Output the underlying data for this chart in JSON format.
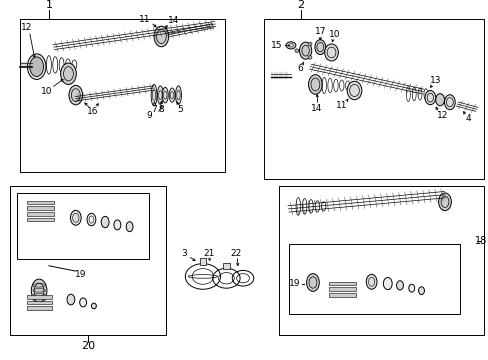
{
  "bg_color": "#ffffff",
  "line_color": "#000000",
  "gray": "#888888",
  "fig_width": 4.89,
  "fig_height": 3.6,
  "dpi": 100,
  "boxes": {
    "b1": [
      0.04,
      0.53,
      0.42,
      0.43
    ],
    "b2": [
      0.54,
      0.51,
      0.45,
      0.45
    ],
    "b3": [
      0.02,
      0.07,
      0.32,
      0.42
    ],
    "b4": [
      0.57,
      0.07,
      0.42,
      0.42
    ]
  }
}
